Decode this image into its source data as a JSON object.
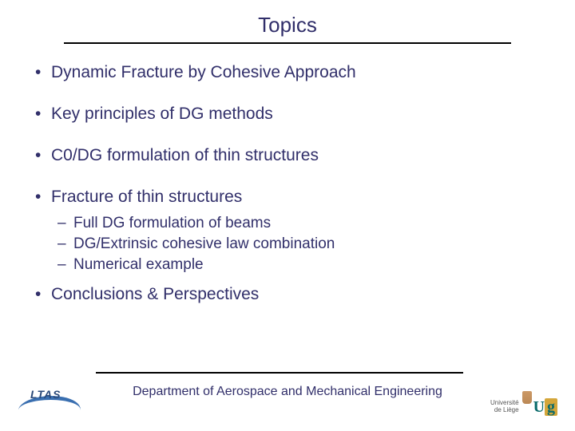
{
  "title": "Topics",
  "bullets": {
    "b0": "Dynamic Fracture by Cohesive Approach",
    "b1": "Key principles of DG methods",
    "b2": "C0/DG formulation of thin structures",
    "b3": "Fracture of thin structures",
    "b4": "Conclusions & Perspectives"
  },
  "sub": {
    "s0": "Full DG formulation of beams",
    "s1": "DG/Extrinsic cohesive law combination",
    "s2": "Numerical example"
  },
  "footer": "Department of Aerospace and Mechanical Engineering",
  "logo_left": "LTAS",
  "logo_right": {
    "line1": "Université",
    "line2": "de Liège",
    "mark": "Ug"
  },
  "colors": {
    "text": "#312f6a",
    "rule": "#000000",
    "background": "#ffffff"
  },
  "typography": {
    "title_fontsize": 26,
    "bullet_fontsize": 21,
    "sub_fontsize": 19,
    "footer_fontsize": 16
  }
}
